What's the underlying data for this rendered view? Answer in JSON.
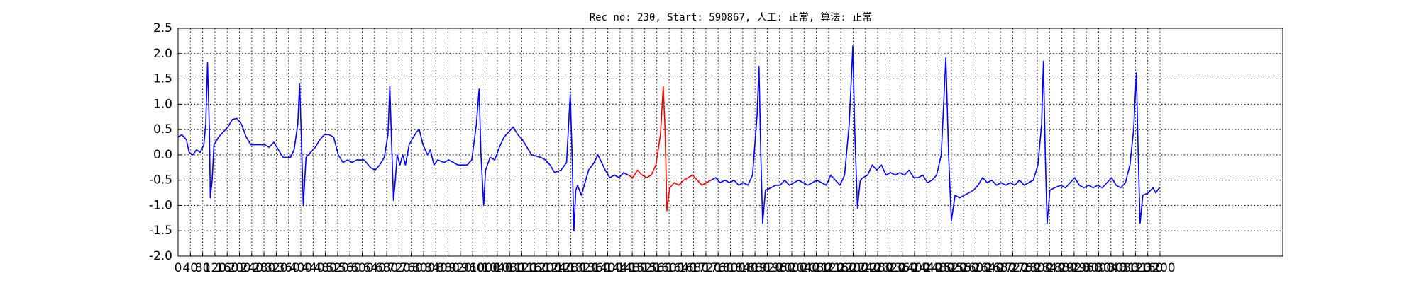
{
  "chart_data": {
    "type": "line",
    "title": "Rec_no: 230, Start: 590867, 人工: 正常, 算法: 正常",
    "xlim": [
      0,
      3600
    ],
    "xticks": [
      0,
      40,
      80,
      120,
      160,
      200,
      240,
      280,
      320,
      360,
      400,
      440,
      480,
      520,
      560,
      600,
      640,
      680,
      720,
      760,
      800,
      840,
      880,
      920,
      960,
      1000,
      1040,
      1080,
      1120,
      1160,
      1200,
      1240,
      1280,
      1320,
      1360,
      1400,
      1440,
      1480,
      1520,
      1560,
      1600,
      1640,
      1680,
      1720,
      1760,
      1800,
      1840,
      1880,
      1920,
      1960,
      2000,
      2040,
      2080,
      2120,
      2160,
      2200,
      2240,
      2280,
      2320,
      2360,
      2400,
      2440,
      2480,
      2520,
      2560,
      2600,
      2640,
      2680,
      2720,
      2760,
      2800,
      2840,
      2880,
      2920,
      2960,
      3000,
      3040,
      3080,
      3120,
      3160,
      3200
    ],
    "ylim": [
      -2.0,
      2.5
    ],
    "yticks": [
      {
        "value": -2.0,
        "label": "-2.0"
      },
      -1.5,
      {
        "value": -1.0,
        "label": "-1.0"
      },
      -0.5,
      {
        "value": 0.0,
        "label": "0.0"
      },
      0.5,
      {
        "value": 1.0,
        "label": "1.0"
      },
      1.5,
      {
        "value": 2.0,
        "label": "2.0"
      },
      2.5
    ],
    "grid": true,
    "series": [
      {
        "color": "#0000ff",
        "x": [
          0,
          12,
          27,
          36,
          48,
          60,
          72,
          84,
          90,
          96,
          102,
          105,
          111,
          117,
          132,
          147,
          162,
          177,
          192,
          207,
          222,
          237,
          252,
          282,
          297,
          312,
          327,
          342,
          366,
          378,
          390,
          396,
          402,
          408,
          417,
          432,
          447,
          462,
          477,
          492,
          507,
          522,
          537,
          552,
          567,
          582,
          606,
          627,
          642,
          657,
          672,
          684,
          690,
          696,
          702,
          708,
          714,
          723,
          732,
          741,
          753,
          762,
          777,
          786,
          798,
          813,
          822,
          834,
          846,
          867,
          882,
          897,
          912,
          942,
          957,
          972,
          981,
          987,
          996,
          1002,
          1017,
          1032,
          1047,
          1062,
          1077,
          1092,
          1107,
          1122,
          1137,
          1152,
          1182,
          1197,
          1212,
          1227,
          1248,
          1266,
          1278,
          1284,
          1290,
          1296,
          1302,
          1314,
          1326,
          1338,
          1356,
          1368,
          1380,
          1392,
          1407,
          1422,
          1437,
          1452,
          1467
        ],
        "values": [
          0.35,
          0.4,
          0.3,
          0.05,
          0.0,
          0.1,
          0.05,
          0.2,
          0.6,
          1.82,
          0.5,
          -0.85,
          -0.5,
          0.2,
          0.35,
          0.45,
          0.55,
          0.7,
          0.72,
          0.6,
          0.35,
          0.2,
          0.2,
          0.2,
          0.15,
          0.25,
          0.1,
          -0.05,
          -0.05,
          0.1,
          0.6,
          1.4,
          0.3,
          -1.0,
          -0.05,
          0.05,
          0.15,
          0.3,
          0.4,
          0.4,
          0.35,
          0.0,
          -0.15,
          -0.1,
          -0.15,
          -0.1,
          -0.1,
          -0.25,
          -0.3,
          -0.2,
          -0.05,
          0.4,
          1.35,
          0.2,
          -0.9,
          -0.5,
          0.0,
          -0.2,
          0.0,
          -0.2,
          0.2,
          0.3,
          0.45,
          0.5,
          0.2,
          0.0,
          0.1,
          -0.2,
          -0.1,
          -0.15,
          -0.1,
          -0.15,
          -0.2,
          -0.2,
          -0.1,
          0.6,
          1.3,
          0.0,
          -1.0,
          -0.3,
          -0.05,
          -0.1,
          0.15,
          0.35,
          0.45,
          0.55,
          0.4,
          0.3,
          0.15,
          0.0,
          -0.05,
          -0.1,
          -0.2,
          -0.35,
          -0.3,
          -0.15,
          1.2,
          0.0,
          -1.5,
          -0.7,
          -0.6,
          -0.8,
          -0.55,
          -0.3,
          -0.15,
          0.0,
          -0.15,
          -0.3,
          -0.45,
          -0.4,
          -0.45,
          -0.35,
          -0.4
        ]
      },
      {
        "color": "#ff0000",
        "x": [
          1467,
          1482,
          1497,
          1512,
          1527,
          1542,
          1557,
          1572,
          1581,
          1587,
          1593,
          1602,
          1617,
          1632,
          1647,
          1662,
          1677,
          1692,
          1707,
          1722,
          1737
        ],
        "values": [
          -0.4,
          -0.45,
          -0.3,
          -0.4,
          -0.45,
          -0.4,
          -0.2,
          0.4,
          1.35,
          0.5,
          -1.1,
          -0.65,
          -0.55,
          -0.6,
          -0.5,
          -0.45,
          -0.4,
          -0.5,
          -0.6,
          -0.55,
          -0.5
        ]
      },
      {
        "color": "#0000ff",
        "x": [
          1737,
          1752,
          1767,
          1782,
          1797,
          1812,
          1827,
          1842,
          1857,
          1872,
          1887,
          1893,
          1899,
          1905,
          1914,
          1932,
          1947,
          1962,
          1977,
          1992,
          2007,
          2022,
          2037,
          2052,
          2067,
          2082,
          2097,
          2112,
          2127,
          2142,
          2157,
          2172,
          2187,
          2199,
          2205,
          2214,
          2223,
          2232,
          2247,
          2262,
          2277,
          2292,
          2307,
          2322,
          2337,
          2352,
          2367,
          2382,
          2397,
          2412,
          2427,
          2442,
          2457,
          2472,
          2487,
          2502,
          2511,
          2520,
          2532,
          2547,
          2562,
          2577,
          2592,
          2607,
          2622,
          2637,
          2652,
          2667,
          2682,
          2697,
          2712,
          2727,
          2742,
          2757,
          2772,
          2787,
          2802,
          2814,
          2820,
          2826,
          2832,
          2841,
          2856,
          2877,
          2892,
          2907,
          2922,
          2937,
          2952,
          2967,
          2982,
          2997,
          3012,
          3027,
          3042,
          3057,
          3072,
          3087,
          3102,
          3114,
          3123,
          3129,
          3135,
          3144,
          3162,
          3177,
          3186,
          3198
        ],
        "values": [
          -0.5,
          -0.45,
          -0.55,
          -0.5,
          -0.55,
          -0.5,
          -0.6,
          -0.55,
          -0.6,
          -0.4,
          0.8,
          1.75,
          0.0,
          -1.35,
          -0.7,
          -0.65,
          -0.6,
          -0.6,
          -0.5,
          -0.6,
          -0.55,
          -0.5,
          -0.55,
          -0.6,
          -0.55,
          -0.5,
          -0.55,
          -0.6,
          -0.4,
          -0.5,
          -0.6,
          -0.4,
          0.6,
          2.15,
          0.5,
          -1.05,
          -0.5,
          -0.45,
          -0.4,
          -0.2,
          -0.3,
          -0.2,
          -0.4,
          -0.35,
          -0.4,
          -0.35,
          -0.4,
          -0.3,
          -0.45,
          -0.45,
          -0.4,
          -0.55,
          -0.5,
          -0.4,
          0.0,
          1.92,
          0.0,
          -1.3,
          -0.8,
          -0.85,
          -0.8,
          -0.75,
          -0.7,
          -0.6,
          -0.45,
          -0.55,
          -0.5,
          -0.6,
          -0.55,
          -0.6,
          -0.55,
          -0.6,
          -0.5,
          -0.6,
          -0.55,
          -0.5,
          -0.2,
          0.6,
          1.85,
          0.0,
          -1.35,
          -0.7,
          -0.65,
          -0.6,
          -0.65,
          -0.55,
          -0.45,
          -0.6,
          -0.65,
          -0.6,
          -0.65,
          -0.6,
          -0.65,
          -0.55,
          -0.45,
          -0.6,
          -0.65,
          -0.55,
          -0.2,
          0.5,
          1.62,
          0.0,
          -1.35,
          -0.8,
          -0.75,
          -0.65,
          -0.75,
          -0.65
        ]
      }
    ]
  }
}
